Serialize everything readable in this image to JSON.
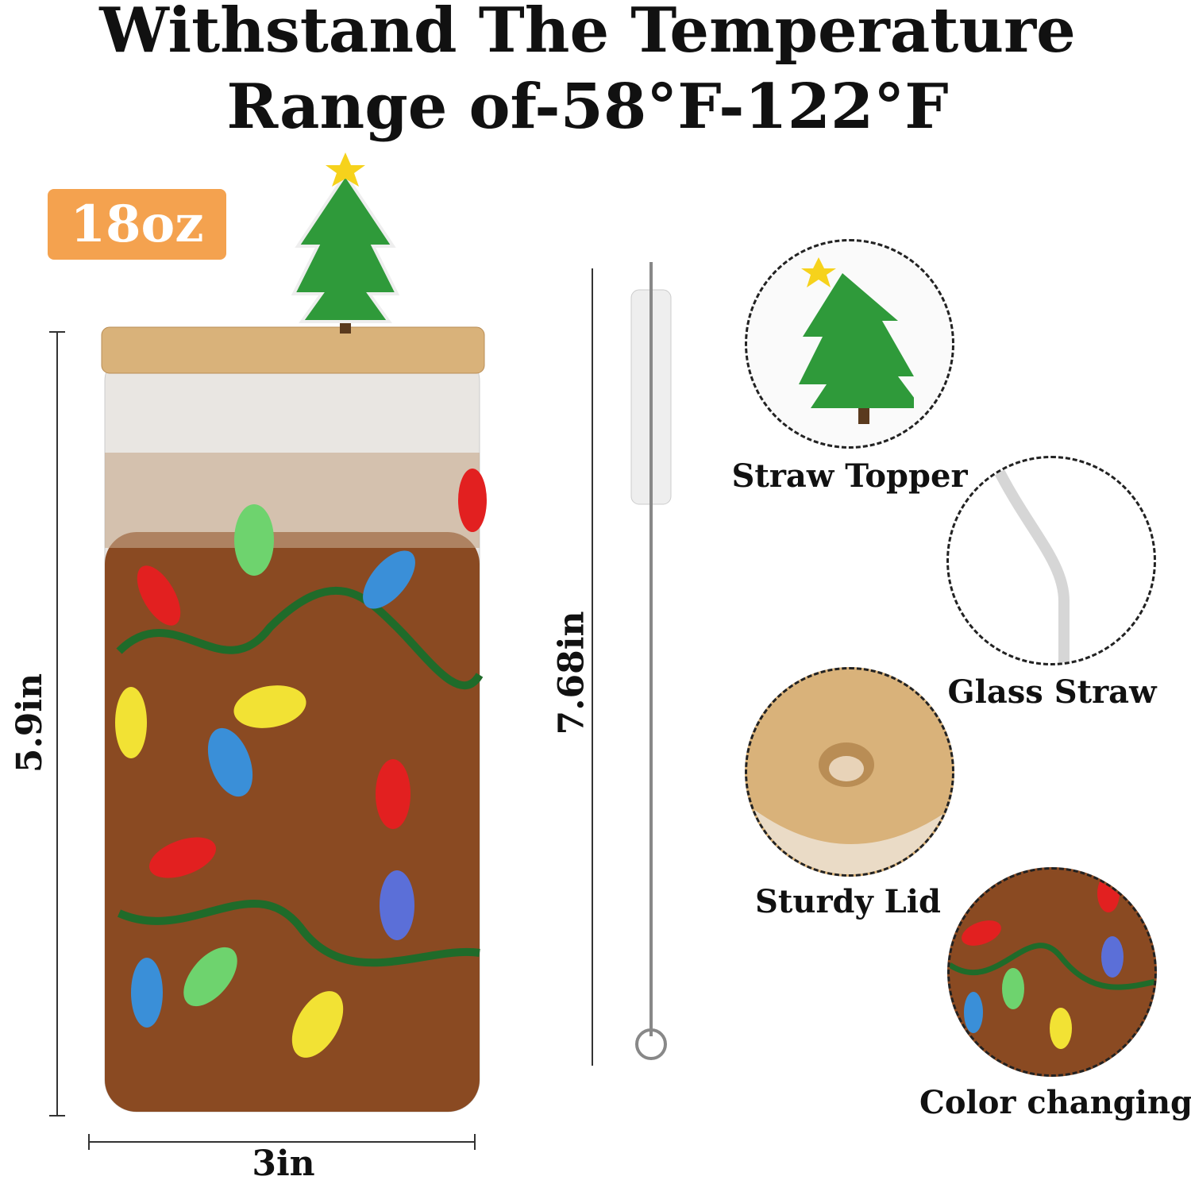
{
  "title": {
    "line1": "Withstand The Temperature",
    "line2": "Range of-58°F-122°F"
  },
  "capacity_badge": "18oz",
  "dimensions": {
    "height": "5.9in",
    "width": "3in",
    "brush_length": "7.68in"
  },
  "features": [
    {
      "label": "Straw Topper",
      "icon": "christmas-tree-topper"
    },
    {
      "label": "Glass Straw",
      "icon": "bent-glass-straw"
    },
    {
      "label": "Sturdy Lid",
      "icon": "bamboo-lid"
    },
    {
      "label": "Color changing",
      "icon": "christmas-lights-pattern"
    }
  ],
  "colors": {
    "badge": "#f4a24f",
    "drink": "#8a4a22",
    "bamboo": "#d9b27a",
    "string": "#1f6b2a"
  }
}
